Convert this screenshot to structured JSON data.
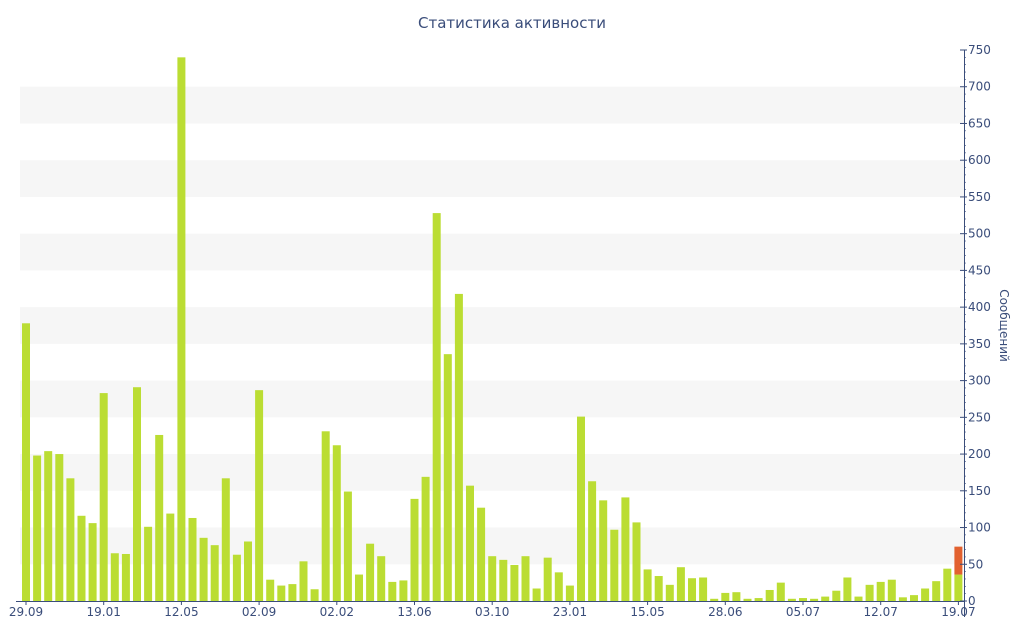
{
  "chart_data": {
    "type": "bar",
    "title": "Статистика активности",
    "ylabel": "Сообщений",
    "xlabel": "",
    "ylim": [
      0,
      750
    ],
    "yticks": [
      0,
      50,
      100,
      150,
      200,
      250,
      300,
      350,
      400,
      450,
      500,
      550,
      600,
      650,
      700,
      750
    ],
    "y_axis_position": "right",
    "grid": "alternating horizontal bands",
    "xtick_labels": [
      {
        "index": 0,
        "label": "29.09"
      },
      {
        "index": 7,
        "label": "19.01"
      },
      {
        "index": 14,
        "label": "12.05"
      },
      {
        "index": 21,
        "label": "02.09"
      },
      {
        "index": 28,
        "label": "02.02"
      },
      {
        "index": 35,
        "label": "13.06"
      },
      {
        "index": 42,
        "label": "03.10"
      },
      {
        "index": 49,
        "label": "23.01"
      },
      {
        "index": 56,
        "label": "15.05"
      },
      {
        "index": 63,
        "label": "28.06"
      },
      {
        "index": 70,
        "label": "05.07"
      },
      {
        "index": 77,
        "label": "12.07"
      },
      {
        "index": 84,
        "label": "19.07"
      }
    ],
    "values": [
      378,
      198,
      204,
      200,
      167,
      116,
      106,
      283,
      65,
      64,
      291,
      101,
      226,
      119,
      740,
      113,
      86,
      76,
      167,
      63,
      81,
      287,
      29,
      21,
      23,
      54,
      16,
      231,
      212,
      149,
      36,
      78,
      61,
      26,
      28,
      139,
      169,
      528,
      336,
      418,
      157,
      127,
      61,
      56,
      49,
      61,
      17,
      59,
      39,
      21,
      251,
      163,
      137,
      97,
      141,
      107,
      43,
      34,
      22,
      46,
      31,
      32,
      3,
      11,
      12,
      3,
      4,
      15,
      25,
      3,
      4,
      3,
      6,
      14,
      32,
      6,
      22,
      26,
      29,
      5,
      8,
      17,
      27,
      44,
      74
    ],
    "last_bar_split": {
      "index": 84,
      "green_value": 36,
      "orange_value": 38
    },
    "colors": {
      "bar": "#bbdd33",
      "highlight": "#e2612f",
      "band": "#f6f6f6",
      "axis": "#3a4d7a",
      "title": "#3a4d7a"
    }
  }
}
